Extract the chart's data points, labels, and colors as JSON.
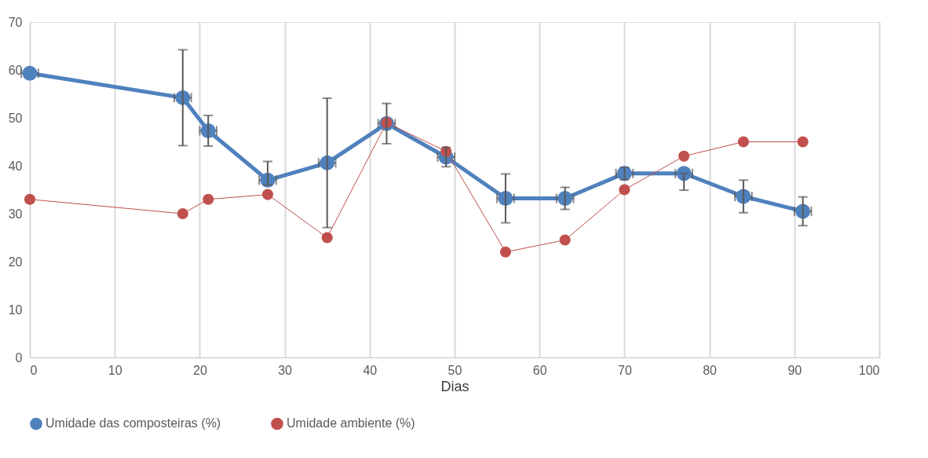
{
  "chart_data": {
    "type": "line",
    "xlabel": "Dias",
    "x": [
      0,
      18,
      21,
      28,
      35,
      42,
      49,
      56,
      63,
      70,
      77,
      84,
      91
    ],
    "xlim": [
      0,
      100
    ],
    "xticks": [
      0,
      10,
      20,
      30,
      40,
      50,
      60,
      70,
      80,
      90,
      100
    ],
    "ylim": [
      0,
      70
    ],
    "yticks": [
      0,
      10,
      20,
      30,
      40,
      50,
      60,
      70
    ],
    "grid": "x",
    "legend": "bottom",
    "marker": "circle",
    "line_style": "solid",
    "series": [
      {
        "name": "Umidade das composteiras (%)",
        "color": "#4f81bd",
        "values": [
          59.3,
          54.2,
          47.3,
          37.0,
          40.6,
          48.8,
          41.8,
          33.2,
          33.2,
          38.4,
          38.4,
          33.6,
          30.5
        ],
        "errors": [
          null,
          10,
          3.2,
          [
            36.0,
            40.9
          ],
          13.5,
          4.2,
          2,
          5.1,
          2.3,
          1.3,
          [
            34.9,
            38.4
          ],
          3.4,
          3
        ],
        "xerrors": [
          1,
          1,
          1,
          1,
          1,
          1,
          1,
          1,
          1,
          1,
          1,
          1,
          1
        ]
      },
      {
        "name": "Umidade ambiente (%)",
        "color": "#c0504d",
        "values": [
          33,
          30,
          33,
          34,
          25,
          49,
          43,
          22,
          24.5,
          35,
          42,
          45,
          45
        ]
      }
    ]
  }
}
